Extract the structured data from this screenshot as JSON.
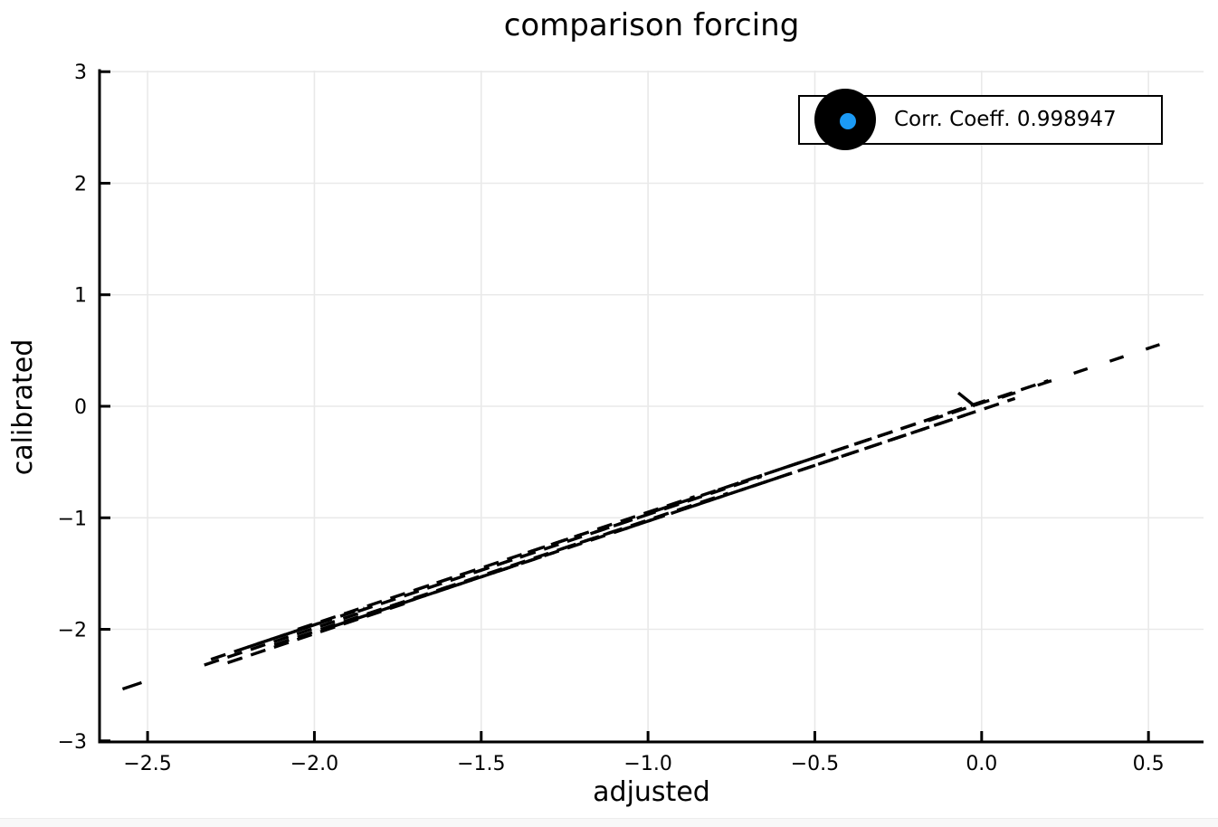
{
  "page": {
    "background": "#ffffff",
    "footer_strip_color": "#f8f8f8"
  },
  "chart_data": {
    "type": "line",
    "title": "comparison forcing",
    "xlabel": "adjusted",
    "ylabel": "calibrated",
    "xlim": [
      -2.644,
      0.665
    ],
    "ylim": [
      -3.01,
      3.01
    ],
    "grid": true,
    "grid_color": "#e9e9e9",
    "axis_color": "#000000",
    "x_ticks": {
      "values": [
        -2.5,
        -2.0,
        -1.5,
        -1.0,
        -0.5,
        0.0,
        0.5
      ],
      "labels": [
        "−2.5",
        "−2.0",
        "−1.5",
        "−1.0",
        "−0.5",
        "0.0",
        "0.5"
      ]
    },
    "y_ticks": {
      "values": [
        3,
        2,
        1,
        0,
        -1,
        -2,
        -3
      ],
      "labels": [
        "3",
        "2",
        "1",
        "0",
        "−1",
        "−2",
        "−3"
      ]
    },
    "legend": {
      "position": "top-right",
      "entries": [
        {
          "label": "Corr. Coeff. 0.998947",
          "marker_outer_color": "#000000",
          "marker_inner_color": "#1b9af5"
        }
      ]
    },
    "series": [
      {
        "name": "Corr. Coeff. 0.998947",
        "style": "dashed",
        "color": "#000000",
        "stroke_width": 3.4,
        "dash_patterns": {
          "dense": "17 10",
          "sparse": "16 26",
          "solid": "none"
        },
        "segments_format": [
          "x1",
          "y1",
          "x2",
          "y2",
          "pattern"
        ],
        "segments": [
          [
            -2.575,
            -2.535,
            -2.518,
            -2.478,
            "solid"
          ],
          [
            -2.33,
            -2.32,
            -1.86,
            -1.85,
            "dense"
          ],
          [
            -2.31,
            -2.27,
            -1.95,
            -1.91,
            "dense"
          ],
          [
            -2.26,
            -2.3,
            -1.72,
            -1.76,
            "dense"
          ],
          [
            -2.2,
            -2.16,
            -1.85,
            -1.81,
            "dense"
          ],
          [
            -2.12,
            -2.14,
            -1.6,
            -1.62,
            "dense"
          ],
          [
            -2.05,
            -2.0,
            -1.55,
            -1.5,
            "dense"
          ],
          [
            -1.95,
            -1.98,
            -1.42,
            -1.45,
            "dense"
          ],
          [
            -1.87,
            -1.84,
            -1.37,
            -1.34,
            "dense"
          ],
          [
            -1.78,
            -1.81,
            -1.28,
            -1.31,
            "dense"
          ],
          [
            -1.7,
            -1.65,
            -1.2,
            -1.15,
            "dense"
          ],
          [
            -1.62,
            -1.64,
            -1.1,
            -1.12,
            "dense"
          ],
          [
            -1.52,
            -1.49,
            -1.02,
            -0.99,
            "dense"
          ],
          [
            -1.45,
            -1.48,
            -0.95,
            -0.98,
            "dense"
          ],
          [
            -1.36,
            -1.31,
            -0.86,
            -0.81,
            "dense"
          ],
          [
            -1.26,
            -1.28,
            -0.76,
            -0.78,
            "dense"
          ],
          [
            -1.16,
            -1.13,
            -0.66,
            -0.63,
            "dense"
          ],
          [
            -1.07,
            -1.1,
            -0.57,
            -0.6,
            "dense"
          ],
          [
            -0.98,
            -0.94,
            -0.48,
            -0.44,
            "dense"
          ],
          [
            -0.89,
            -0.92,
            -0.4,
            -0.43,
            "dense"
          ],
          [
            -0.79,
            -0.75,
            -0.31,
            -0.27,
            "dense"
          ],
          [
            -0.69,
            -0.72,
            -0.23,
            -0.26,
            "dense"
          ],
          [
            -0.59,
            -0.55,
            -0.13,
            -0.09,
            "dense"
          ],
          [
            -0.49,
            -0.52,
            -0.05,
            -0.08,
            "dense"
          ],
          [
            -0.38,
            -0.34,
            0.02,
            0.06,
            "dense"
          ],
          [
            -0.27,
            -0.3,
            0.1,
            0.07,
            "dense"
          ],
          [
            -0.16,
            -0.13,
            0.2,
            0.23,
            "dense"
          ],
          [
            -0.07,
            0.12,
            -0.02,
            0.0,
            "solid"
          ],
          [
            0.06,
            0.08,
            0.565,
            0.585,
            "sparse"
          ]
        ]
      }
    ]
  }
}
